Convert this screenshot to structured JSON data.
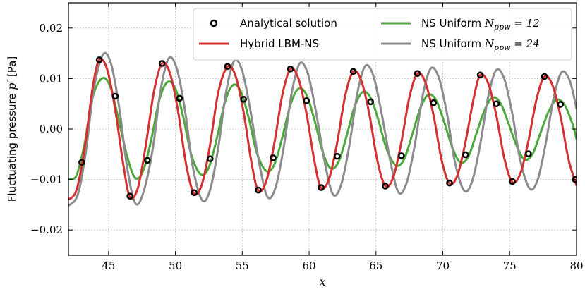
{
  "chart_data": {
    "type": "line",
    "xlabel": "x",
    "ylabel": "Fluctuating pressure p′ [Pa]",
    "ylabel_text": "Fluctuating pressure ",
    "ylabel_math": "p′",
    "ylabel_unit": " [Pa]",
    "xlim": [
      42,
      80
    ],
    "ylim": [
      -0.025,
      0.025
    ],
    "x_ticks": [
      45,
      50,
      55,
      60,
      65,
      70,
      75,
      80
    ],
    "x_tick_labels": [
      "45",
      "50",
      "55",
      "60",
      "65",
      "70",
      "75",
      "80"
    ],
    "y_ticks": [
      -0.02,
      -0.01,
      0.0,
      0.01,
      0.02
    ],
    "y_tick_labels": [
      "−0.02",
      "−0.01",
      "0.00",
      "0.01",
      "0.02"
    ],
    "grid": true,
    "legend_position": "top-right",
    "legend": [
      {
        "label": "Analytical solution",
        "text": "Analytical solution",
        "math": "",
        "sub": "",
        "tail": "",
        "type": "marker",
        "color": "#000000"
      },
      {
        "label": "NS Uniform N_ppw = 12",
        "text": "NS Uniform ",
        "math": "N",
        "sub": "ppw",
        "tail": " = 12",
        "type": "line",
        "color": "#4aa93a"
      },
      {
        "label": "Hybrid LBM-NS",
        "text": "Hybrid LBM-NS",
        "math": "",
        "sub": "",
        "tail": "",
        "type": "line",
        "color": "#d62f2f"
      },
      {
        "label": "NS Uniform N_ppw = 24",
        "text": "NS Uniform ",
        "math": "N",
        "sub": "ppw",
        "tail": " = 24",
        "type": "line",
        "color": "#8c8c8c"
      }
    ],
    "series": [
      {
        "name": "Analytical solution",
        "kind": "scatter",
        "color": "#000000",
        "points": [
          [
            43.0,
            -0.0066
          ],
          [
            44.3,
            0.0137
          ],
          [
            45.5,
            0.0065
          ],
          [
            46.6,
            -0.0133
          ],
          [
            47.9,
            -0.0062
          ],
          [
            49.0,
            0.013
          ],
          [
            50.3,
            0.0061
          ],
          [
            51.4,
            -0.0126
          ],
          [
            52.6,
            -0.0059
          ],
          [
            53.9,
            0.0124
          ],
          [
            55.1,
            0.0059
          ],
          [
            56.2,
            -0.0121
          ],
          [
            57.3,
            -0.0057
          ],
          [
            58.6,
            0.0119
          ],
          [
            59.8,
            0.0056
          ],
          [
            60.9,
            -0.0116
          ],
          [
            62.1,
            -0.0054
          ],
          [
            63.3,
            0.0114
          ],
          [
            64.6,
            0.0054
          ],
          [
            65.7,
            -0.0113
          ],
          [
            66.9,
            -0.0053
          ],
          [
            68.1,
            0.011
          ],
          [
            69.3,
            0.0052
          ],
          [
            70.5,
            -0.0107
          ],
          [
            71.7,
            -0.0051
          ],
          [
            72.8,
            0.0107
          ],
          [
            74.0,
            0.005
          ],
          [
            75.2,
            -0.0104
          ],
          [
            76.4,
            -0.0049
          ],
          [
            77.6,
            0.0104
          ],
          [
            78.8,
            0.0049
          ],
          [
            79.9,
            -0.01
          ]
        ]
      },
      {
        "name": "Hybrid LBM-NS",
        "kind": "line",
        "color": "#d62f2f",
        "phase_x": 44.3,
        "period": 4.7,
        "amp_start": 0.0137,
        "amp_end": 0.0104,
        "points": [
          [
            42.0,
            -0.014
          ],
          [
            42.6,
            -0.0121
          ],
          [
            43.2,
            -0.004
          ],
          [
            43.8,
            0.008
          ],
          [
            44.3,
            0.0137
          ],
          [
            44.9,
            0.0118
          ],
          [
            45.5,
            0.0038
          ],
          [
            46.1,
            -0.007
          ],
          [
            46.6,
            -0.0135
          ],
          [
            47.2,
            -0.0116
          ],
          [
            47.8,
            -0.003
          ],
          [
            48.4,
            0.0075
          ],
          [
            49.0,
            0.013
          ],
          [
            49.6,
            0.011
          ],
          [
            50.2,
            0.0035
          ],
          [
            50.8,
            -0.007
          ],
          [
            51.4,
            -0.0128
          ],
          [
            52.0,
            -0.0108
          ],
          [
            52.6,
            -0.003
          ],
          [
            53.2,
            0.0072
          ],
          [
            53.9,
            0.0124
          ],
          [
            54.5,
            0.0105
          ],
          [
            55.1,
            0.0033
          ],
          [
            55.7,
            -0.0068
          ],
          [
            56.2,
            -0.0122
          ],
          [
            56.8,
            -0.0103
          ],
          [
            57.4,
            -0.0028
          ],
          [
            58.0,
            0.0068
          ],
          [
            58.6,
            0.0119
          ],
          [
            59.2,
            0.01
          ],
          [
            59.8,
            0.0031
          ],
          [
            60.4,
            -0.0064
          ],
          [
            60.9,
            -0.0117
          ],
          [
            61.5,
            -0.0098
          ],
          [
            62.1,
            -0.0027
          ],
          [
            62.7,
            0.0066
          ],
          [
            63.3,
            0.0114
          ],
          [
            63.9,
            0.0096
          ],
          [
            64.5,
            0.003
          ],
          [
            65.1,
            -0.0062
          ],
          [
            65.7,
            -0.0113
          ],
          [
            66.3,
            -0.0095
          ],
          [
            66.9,
            -0.0026
          ],
          [
            67.5,
            0.0063
          ],
          [
            68.1,
            0.011
          ],
          [
            68.7,
            0.0092
          ],
          [
            69.3,
            0.0028
          ],
          [
            69.9,
            -0.006
          ],
          [
            70.5,
            -0.0108
          ],
          [
            71.1,
            -0.0091
          ],
          [
            71.7,
            -0.0025
          ],
          [
            72.3,
            0.006
          ],
          [
            72.8,
            0.0107
          ],
          [
            73.4,
            0.009
          ],
          [
            74.0,
            0.0027
          ],
          [
            74.6,
            -0.0058
          ],
          [
            75.2,
            -0.0105
          ],
          [
            75.8,
            -0.0088
          ],
          [
            76.4,
            -0.0024
          ],
          [
            77.0,
            0.0058
          ],
          [
            77.6,
            0.0104
          ],
          [
            78.2,
            0.0087
          ],
          [
            78.8,
            0.0026
          ],
          [
            79.4,
            -0.006
          ],
          [
            80.0,
            -0.0112
          ]
        ]
      },
      {
        "name": "NS Uniform N_ppw = 12",
        "kind": "line",
        "color": "#4aa93a",
        "points": [
          [
            42.0,
            -0.01
          ],
          [
            42.6,
            -0.0092
          ],
          [
            43.2,
            -0.003
          ],
          [
            43.8,
            0.0062
          ],
          [
            44.5,
            0.01
          ],
          [
            45.1,
            0.0086
          ],
          [
            45.7,
            0.0025
          ],
          [
            46.4,
            -0.0055
          ],
          [
            47.0,
            -0.0097
          ],
          [
            47.6,
            -0.0082
          ],
          [
            48.2,
            -0.002
          ],
          [
            48.8,
            0.0058
          ],
          [
            49.4,
            0.0093
          ],
          [
            50.0,
            0.008
          ],
          [
            50.6,
            0.0022
          ],
          [
            51.2,
            -0.0052
          ],
          [
            51.9,
            -0.009
          ],
          [
            52.5,
            -0.0076
          ],
          [
            53.1,
            -0.0018
          ],
          [
            53.7,
            0.0053
          ],
          [
            54.3,
            0.0087
          ],
          [
            54.9,
            0.0074
          ],
          [
            55.5,
            0.002
          ],
          [
            56.1,
            -0.0048
          ],
          [
            56.8,
            -0.0083
          ],
          [
            57.4,
            -0.007
          ],
          [
            58.0,
            -0.0016
          ],
          [
            58.6,
            0.0048
          ],
          [
            59.2,
            0.008
          ],
          [
            59.8,
            0.0068
          ],
          [
            60.4,
            0.0018
          ],
          [
            61.0,
            -0.0044
          ],
          [
            61.6,
            -0.0078
          ],
          [
            62.2,
            -0.0065
          ],
          [
            62.8,
            -0.0014
          ],
          [
            63.4,
            0.0044
          ],
          [
            64.0,
            0.0073
          ],
          [
            64.6,
            0.0062
          ],
          [
            65.2,
            0.0016
          ],
          [
            65.8,
            -0.004
          ],
          [
            66.5,
            -0.0072
          ],
          [
            67.1,
            -0.006
          ],
          [
            67.7,
            -0.0012
          ],
          [
            68.3,
            0.004
          ],
          [
            68.9,
            0.0068
          ],
          [
            69.5,
            0.0057
          ],
          [
            70.1,
            0.0014
          ],
          [
            70.7,
            -0.0036
          ],
          [
            71.3,
            -0.0066
          ],
          [
            71.9,
            -0.0055
          ],
          [
            72.5,
            -0.001
          ],
          [
            73.1,
            0.0036
          ],
          [
            73.7,
            0.0062
          ],
          [
            74.3,
            0.0052
          ],
          [
            74.9,
            0.0012
          ],
          [
            75.5,
            -0.0032
          ],
          [
            76.1,
            -0.006
          ],
          [
            76.7,
            -0.005
          ],
          [
            77.3,
            -0.0008
          ],
          [
            77.9,
            0.0034
          ],
          [
            78.5,
            0.0058
          ],
          [
            79.1,
            0.0048
          ],
          [
            79.7,
            0.001
          ],
          [
            80.0,
            -0.002
          ]
        ]
      },
      {
        "name": "NS Uniform N_ppw = 24",
        "kind": "line",
        "color": "#8c8c8c",
        "points": [
          [
            42.0,
            -0.0152
          ],
          [
            42.7,
            -0.013
          ],
          [
            43.3,
            -0.0045
          ],
          [
            43.9,
            0.008
          ],
          [
            44.6,
            0.0148
          ],
          [
            45.2,
            0.0128
          ],
          [
            45.8,
            0.0042
          ],
          [
            46.4,
            -0.0078
          ],
          [
            47.0,
            -0.0147
          ],
          [
            47.6,
            -0.0126
          ],
          [
            48.3,
            -0.004
          ],
          [
            48.9,
            0.0078
          ],
          [
            49.5,
            0.014
          ],
          [
            50.1,
            0.012
          ],
          [
            50.7,
            0.004
          ],
          [
            51.3,
            -0.0075
          ],
          [
            52.0,
            -0.0141
          ],
          [
            52.6,
            -0.012
          ],
          [
            53.2,
            -0.0038
          ],
          [
            53.8,
            0.0075
          ],
          [
            54.4,
            0.0135
          ],
          [
            55.0,
            0.0115
          ],
          [
            55.6,
            0.0038
          ],
          [
            56.3,
            -0.0072
          ],
          [
            56.9,
            -0.0135
          ],
          [
            57.5,
            -0.0115
          ],
          [
            58.1,
            -0.0036
          ],
          [
            58.7,
            0.0072
          ],
          [
            59.3,
            0.013
          ],
          [
            59.9,
            0.011
          ],
          [
            60.5,
            0.0036
          ],
          [
            61.2,
            -0.007
          ],
          [
            61.8,
            -0.013
          ],
          [
            62.4,
            -0.011
          ],
          [
            63.0,
            -0.0034
          ],
          [
            63.6,
            0.007
          ],
          [
            64.2,
            0.0125
          ],
          [
            64.8,
            0.0106
          ],
          [
            65.4,
            0.0034
          ],
          [
            66.1,
            -0.0067
          ],
          [
            66.7,
            -0.0126
          ],
          [
            67.3,
            -0.0106
          ],
          [
            67.9,
            -0.0032
          ],
          [
            68.5,
            0.0067
          ],
          [
            69.1,
            0.012
          ],
          [
            69.7,
            0.0102
          ],
          [
            70.3,
            0.0032
          ],
          [
            70.9,
            -0.0065
          ],
          [
            71.6,
            -0.0122
          ],
          [
            72.2,
            -0.0103
          ],
          [
            72.8,
            -0.003
          ],
          [
            73.4,
            0.0065
          ],
          [
            74.0,
            0.0117
          ],
          [
            74.6,
            0.0099
          ],
          [
            75.2,
            0.003
          ],
          [
            75.8,
            -0.0063
          ],
          [
            76.5,
            -0.0118
          ],
          [
            77.1,
            -0.01
          ],
          [
            77.7,
            -0.0028
          ],
          [
            78.3,
            0.0063
          ],
          [
            78.9,
            0.0113
          ],
          [
            79.5,
            0.0095
          ],
          [
            80.0,
            0.004
          ]
        ]
      }
    ]
  }
}
